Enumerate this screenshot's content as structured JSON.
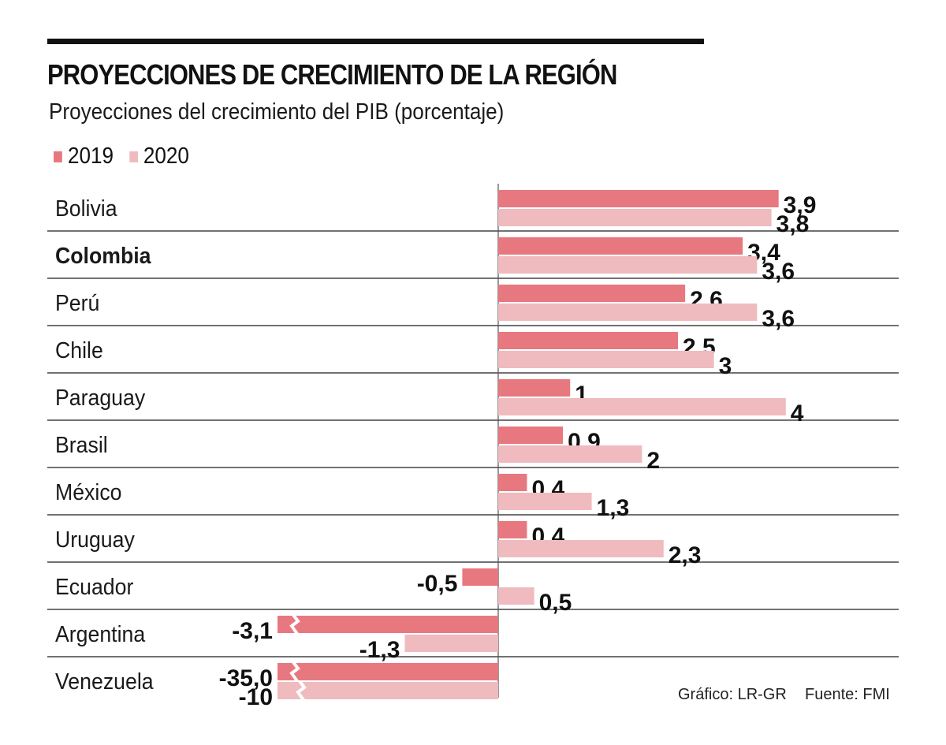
{
  "header": {
    "title": "PROYECCIONES DE CRECIMIENTO DE LA REGIÓN",
    "subtitle": "Proyecciones del crecimiento del PIB (porcentaje)"
  },
  "footer": {
    "credit": "Gráfico: LR-GR",
    "source": "Fuente: FMI"
  },
  "colors": {
    "series_2019": "#e87880",
    "series_2020": "#efbbbf",
    "text": "#111111"
  },
  "chart_data": {
    "type": "bar",
    "orientation": "horizontal",
    "title": "PROYECCIONES DE CRECIMIENTO DE LA REGIÓN",
    "subtitle": "Proyecciones del crecimiento del PIB (porcentaje)",
    "xlabel": "",
    "ylabel": "",
    "legend_position": "top-left",
    "grid": false,
    "categories": [
      "Bolivia",
      "Colombia",
      "Perú",
      "Chile",
      "Paraguay",
      "Brasil",
      "México",
      "Uruguay",
      "Ecuador",
      "Argentina",
      "Venezuela"
    ],
    "highlighted_category": "Colombia",
    "series": [
      {
        "name": "2019",
        "values": [
          3.9,
          3.4,
          2.6,
          2.5,
          1,
          0.9,
          0.4,
          0.4,
          -0.5,
          -3.1,
          -35.0
        ],
        "labels": [
          "3,9",
          "3,4",
          "2,6",
          "2,5",
          "1",
          "0,9",
          "0,4",
          "0,4",
          "-0,5",
          "-3,1",
          "-35,0"
        ]
      },
      {
        "name": "2020",
        "values": [
          3.8,
          3.6,
          3.6,
          3,
          4,
          2,
          1.3,
          2.3,
          0.5,
          -1.3,
          -10
        ],
        "labels": [
          "3,8",
          "3,6",
          "3,6",
          "3",
          "4",
          "2",
          "1,3",
          "2,3",
          "0,5",
          "-1,3",
          "-10"
        ]
      }
    ],
    "broken_axis_note": "Venezuela bars truncated with break marks",
    "xlim": [
      -3.1,
      4
    ]
  }
}
